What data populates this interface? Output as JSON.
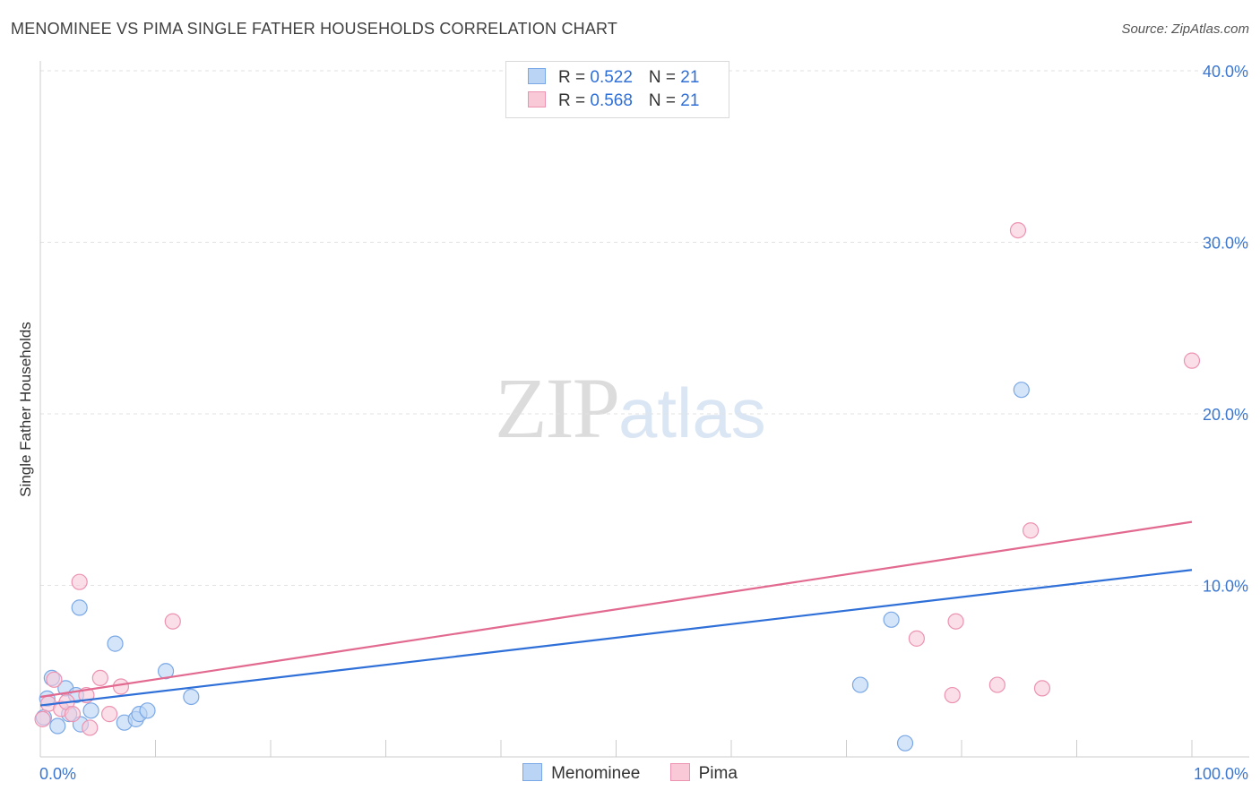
{
  "title": "MENOMINEE VS PIMA SINGLE FATHER HOUSEHOLDS CORRELATION CHART",
  "source": "Source: ZipAtlas.com",
  "watermark": {
    "zip": "ZIP",
    "atlas": "atlas"
  },
  "legend": {
    "rows": [
      {
        "r_label": "R = ",
        "r_value": "0.522",
        "n_label": "N = ",
        "n_value": "21"
      },
      {
        "r_label": "R = ",
        "r_value": "0.568",
        "n_label": "N = ",
        "n_value": "21"
      }
    ]
  },
  "colors": {
    "menominee_fill": "#b9d4f5",
    "menominee_stroke": "#7aa8e6",
    "menominee_line": "#2f6fd8",
    "pima_fill": "#f9c9d8",
    "pima_stroke": "#ec93b1",
    "pima_line": "#e2698f",
    "axis_label": "#3a76d0",
    "grid": "#e2e2e2"
  },
  "chart_data": {
    "type": "scatter",
    "title": "MENOMINEE VS PIMA SINGLE FATHER HOUSEHOLDS CORRELATION CHART",
    "xlabel": "",
    "ylabel": "Single Father Households",
    "xlim": [
      0,
      100
    ],
    "ylim": [
      0,
      41.5
    ],
    "x_tick_labels": [
      "0.0%",
      "100.0%"
    ],
    "y_ticks": [
      10,
      20,
      30,
      40
    ],
    "y_tick_labels": [
      "10.0%",
      "20.0%",
      "30.0%",
      "40.0%"
    ],
    "series": [
      {
        "name": "Menominee",
        "trend": {
          "x": [
            0,
            100
          ],
          "y": [
            3.0,
            10.9
          ]
        },
        "points": [
          {
            "x": 0.3,
            "y": 2.3
          },
          {
            "x": 0.6,
            "y": 3.4
          },
          {
            "x": 1.0,
            "y": 4.6
          },
          {
            "x": 1.5,
            "y": 1.8
          },
          {
            "x": 2.2,
            "y": 4.0
          },
          {
            "x": 2.5,
            "y": 2.5
          },
          {
            "x": 3.1,
            "y": 3.6
          },
          {
            "x": 3.4,
            "y": 8.7
          },
          {
            "x": 3.5,
            "y": 1.9
          },
          {
            "x": 4.4,
            "y": 2.7
          },
          {
            "x": 6.5,
            "y": 6.6
          },
          {
            "x": 7.3,
            "y": 2.0
          },
          {
            "x": 8.3,
            "y": 2.2
          },
          {
            "x": 8.6,
            "y": 2.5
          },
          {
            "x": 9.3,
            "y": 2.7
          },
          {
            "x": 10.9,
            "y": 5.0
          },
          {
            "x": 13.1,
            "y": 3.5
          },
          {
            "x": 71.2,
            "y": 4.2
          },
          {
            "x": 73.9,
            "y": 8.0
          },
          {
            "x": 75.1,
            "y": 0.8
          },
          {
            "x": 85.2,
            "y": 21.4
          }
        ]
      },
      {
        "name": "Pima",
        "trend": {
          "x": [
            0,
            100
          ],
          "y": [
            3.5,
            13.7
          ]
        },
        "points": [
          {
            "x": 0.2,
            "y": 2.2
          },
          {
            "x": 0.7,
            "y": 3.1
          },
          {
            "x": 1.2,
            "y": 4.5
          },
          {
            "x": 1.8,
            "y": 2.8
          },
          {
            "x": 2.3,
            "y": 3.2
          },
          {
            "x": 2.8,
            "y": 2.5
          },
          {
            "x": 3.4,
            "y": 10.2
          },
          {
            "x": 4.0,
            "y": 3.6
          },
          {
            "x": 4.3,
            "y": 1.7
          },
          {
            "x": 5.2,
            "y": 4.6
          },
          {
            "x": 6.0,
            "y": 2.5
          },
          {
            "x": 7.0,
            "y": 4.1
          },
          {
            "x": 11.5,
            "y": 7.9
          },
          {
            "x": 76.1,
            "y": 6.9
          },
          {
            "x": 79.2,
            "y": 3.6
          },
          {
            "x": 79.5,
            "y": 7.9
          },
          {
            "x": 84.9,
            "y": 30.7
          },
          {
            "x": 83.1,
            "y": 4.2
          },
          {
            "x": 86.0,
            "y": 13.2
          },
          {
            "x": 87.0,
            "y": 4.0
          },
          {
            "x": 100.0,
            "y": 23.1
          }
        ]
      }
    ],
    "legend_position": "top-center"
  }
}
